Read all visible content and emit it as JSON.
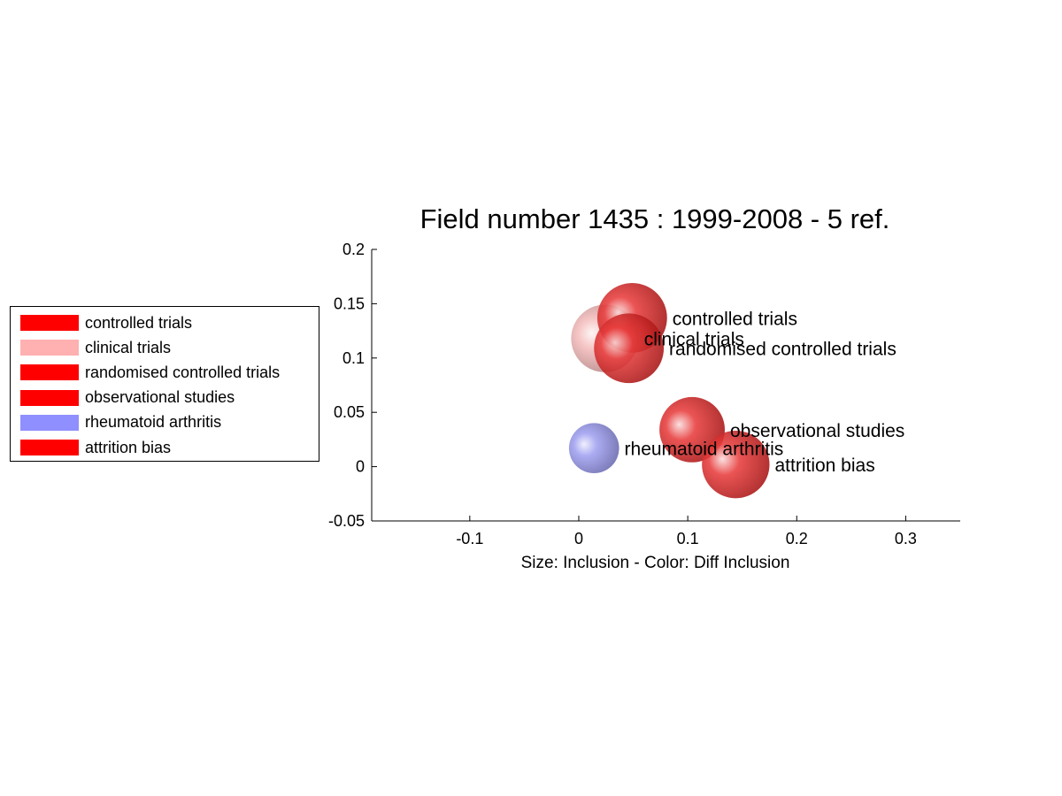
{
  "chart_data": {
    "type": "scatter",
    "title": "Field number 1435 : 1999-2008  - 5 ref.",
    "xlabel": "Size: Inclusion - Color: Diff Inclusion",
    "ylabel": "",
    "xlim": [
      -0.19,
      0.35
    ],
    "ylim": [
      -0.05,
      0.2
    ],
    "xticks": [
      -0.1,
      0,
      0.1,
      0.2,
      0.3
    ],
    "xtick_labels": [
      "-0.1",
      "0",
      "0.1",
      "0.2",
      "0.3"
    ],
    "yticks": [
      -0.05,
      0,
      0.05,
      0.1,
      0.15,
      0.2
    ],
    "ytick_labels": [
      "-0.05",
      "0",
      "0.05",
      "0.1",
      "0.15",
      "0.2"
    ],
    "grid": false,
    "legend_position": "left",
    "points": [
      {
        "label": "clinical trials",
        "x": 0.024,
        "y": 0.118,
        "size": 0.031,
        "color": "#f2b0b0"
      },
      {
        "label": "controlled trials",
        "x": 0.049,
        "y": 0.137,
        "size": 0.032,
        "color": "#e41a1a"
      },
      {
        "label": "randomised controlled trials",
        "x": 0.046,
        "y": 0.109,
        "size": 0.032,
        "color": "#e41a1a"
      },
      {
        "label": "rheumatoid arthritis",
        "x": 0.014,
        "y": 0.017,
        "size": 0.023,
        "color": "#8f8fef"
      },
      {
        "label": "observational studies",
        "x": 0.104,
        "y": 0.034,
        "size": 0.03,
        "color": "#e41a1a"
      },
      {
        "label": "attrition bias",
        "x": 0.144,
        "y": 0.002,
        "size": 0.031,
        "color": "#e41a1a"
      }
    ],
    "legend": [
      {
        "label": "controlled trials",
        "color": "#ff0000"
      },
      {
        "label": "clinical trials",
        "color": "#ffb0b0"
      },
      {
        "label": "randomised controlled trials",
        "color": "#ff0000"
      },
      {
        "label": "observational studies",
        "color": "#ff0000"
      },
      {
        "label": "rheumatoid arthritis",
        "color": "#8f8fff"
      },
      {
        "label": "attrition bias",
        "color": "#ff0000"
      }
    ]
  }
}
